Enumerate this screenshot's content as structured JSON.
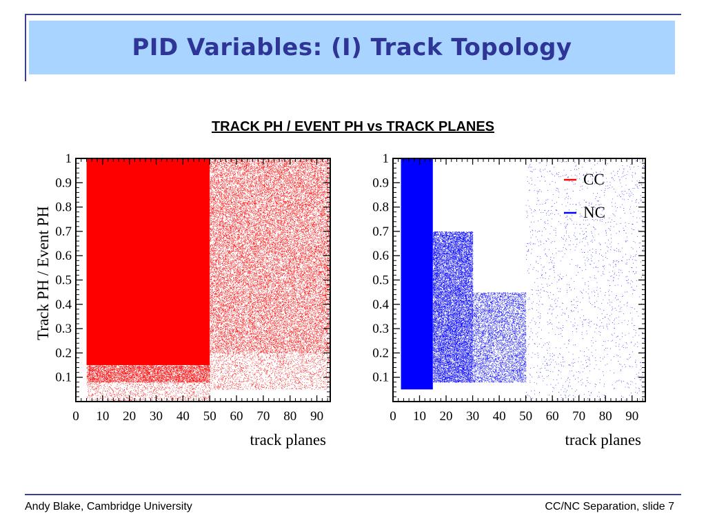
{
  "slide": {
    "title": "PID Variables: (I) Track Topology",
    "subtitle": "TRACK PH / EVENT PH vs TRACK PLANES",
    "footer_left": "Andy Blake, Cambridge University",
    "footer_right": "CC/NC Separation, slide 7"
  },
  "chart_data": [
    {
      "type": "scatter",
      "series": [
        {
          "name": "CC",
          "color": "#ff0000"
        }
      ],
      "xlabel": "track planes",
      "ylabel": "Track PH / Event PH",
      "xlim": [
        0,
        95
      ],
      "ylim": [
        0,
        1
      ],
      "x_ticks": [
        "0",
        "10",
        "20",
        "30",
        "40",
        "50",
        "60",
        "70",
        "80",
        "90"
      ],
      "y_ticks": [
        "0.1",
        "0.2",
        "0.3",
        "0.4",
        "0.5",
        "0.6",
        "0.7",
        "0.8",
        "0.9",
        "1"
      ],
      "density_regions": [
        {
          "x": [
            4,
            50
          ],
          "y": [
            0.15,
            1.0
          ],
          "density": "saturated"
        },
        {
          "x": [
            4,
            50
          ],
          "y": [
            0.08,
            0.15
          ],
          "density": "high"
        },
        {
          "x": [
            50,
            95
          ],
          "y": [
            0.2,
            1.0
          ],
          "density": "medium"
        },
        {
          "x": [
            50,
            95
          ],
          "y": [
            0.05,
            0.2
          ],
          "density": "low"
        },
        {
          "x": [
            4,
            50
          ],
          "y": [
            0.0,
            0.08
          ],
          "density": "low"
        }
      ]
    },
    {
      "type": "scatter",
      "series": [
        {
          "name": "NC",
          "color": "#0000ff"
        }
      ],
      "xlabel": "track planes",
      "ylabel": "",
      "xlim": [
        0,
        95
      ],
      "ylim": [
        0,
        1
      ],
      "x_ticks": [
        "0",
        "10",
        "20",
        "30",
        "40",
        "50",
        "60",
        "70",
        "80",
        "90"
      ],
      "y_ticks": [
        "0.1",
        "0.2",
        "0.3",
        "0.4",
        "0.5",
        "0.6",
        "0.7",
        "0.8",
        "0.9",
        "1"
      ],
      "legend": {
        "position": "top-right",
        "entries": [
          {
            "label": "CC",
            "color": "#ff0000"
          },
          {
            "label": "NC",
            "color": "#0000ff"
          }
        ]
      },
      "density_regions": [
        {
          "x": [
            3,
            15
          ],
          "y": [
            0.05,
            1.0
          ],
          "density": "saturated"
        },
        {
          "x": [
            15,
            30
          ],
          "y": [
            0.08,
            0.7
          ],
          "density": "high"
        },
        {
          "x": [
            30,
            50
          ],
          "y": [
            0.08,
            0.45
          ],
          "density": "medium"
        },
        {
          "x": [
            50,
            95
          ],
          "y": [
            0.0,
            1.0
          ],
          "density": "sparse"
        }
      ]
    }
  ]
}
